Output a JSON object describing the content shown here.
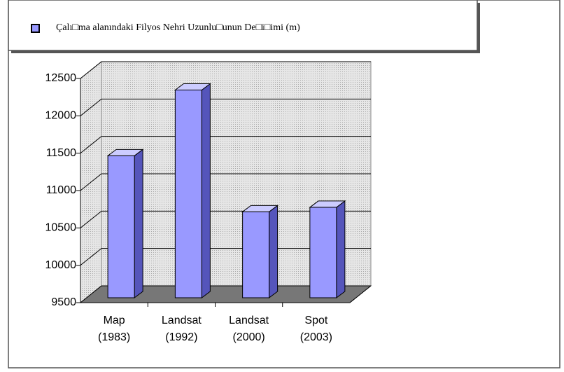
{
  "chart_data": {
    "type": "bar3d",
    "legend_label": "Çalı□ma alanındaki Filyos Nehri Uzunlu□unun De□i□imi (m)",
    "categories": [
      [
        "Map",
        "(1983)"
      ],
      [
        "Landsat",
        "(1992)"
      ],
      [
        "Landsat",
        "(2000)"
      ],
      [
        "Spot",
        "(2003)"
      ]
    ],
    "values": [
      11400,
      12280,
      10650,
      10710
    ],
    "color": "#9999ff",
    "ylim": [
      9500,
      12500
    ],
    "yticks": [
      9500,
      10000,
      10500,
      11000,
      11500,
      12000,
      12500
    ],
    "grid": true
  }
}
